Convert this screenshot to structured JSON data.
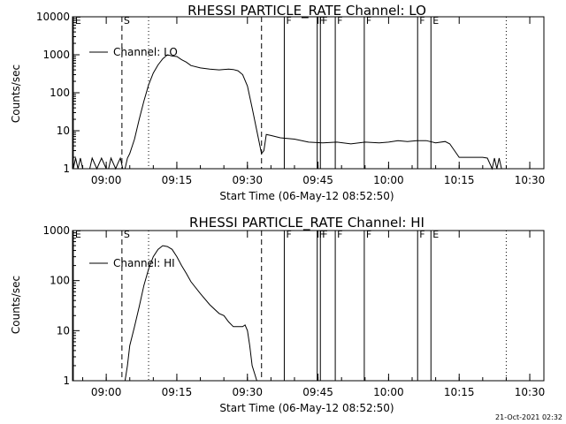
{
  "chart_data": [
    {
      "type": "line",
      "title": "RHESSI PARTICLE_RATE Channel: LO",
      "xlabel": "Start Time (06-May-12 08:52:50)",
      "ylabel": "Counts/sec",
      "yscale": "log",
      "ylim": [
        1,
        10000
      ],
      "xlim": [
        "08:52:50",
        "10:33:00"
      ],
      "x_ticks": [
        "09:00",
        "09:15",
        "09:30",
        "09:45",
        "10:00",
        "10:15",
        "10:30"
      ],
      "y_ticks": [
        "1",
        "10",
        "100",
        "1000",
        "10000"
      ],
      "legend": {
        "location": "top-left",
        "entries": [
          "Channel: LO"
        ]
      },
      "grid": false,
      "series": [
        {
          "name": "Channel: LO",
          "x": [
            "08:53:00",
            "08:53:30",
            "08:54:00",
            "08:54:30",
            "08:55:00",
            "08:55:30",
            "08:56:00",
            "08:56:30",
            "08:57:00",
            "08:58:00",
            "08:59:00",
            "09:00:00",
            "09:00:30",
            "09:01:00",
            "09:02:00",
            "09:02:30",
            "09:03:00",
            "09:03:30",
            "09:04:00",
            "09:04:30",
            "09:05:00",
            "09:06:00",
            "09:07:00",
            "09:08:00",
            "09:09:00",
            "09:10:00",
            "09:11:00",
            "09:12:00",
            "09:13:00",
            "09:14:00",
            "09:15:00",
            "09:16:00",
            "09:17:00",
            "09:18:00",
            "09:20:00",
            "09:22:00",
            "09:24:00",
            "09:26:00",
            "09:27:00",
            "09:28:00",
            "09:29:00",
            "09:30:00",
            "09:31:00",
            "09:32:00",
            "09:33:00",
            "09:33:30",
            "09:34:00",
            "09:35:00",
            "09:37:00",
            "09:40:00",
            "09:43:00",
            "09:46:00",
            "09:49:00",
            "09:52:00",
            "09:55:00",
            "09:58:00",
            "10:00:00",
            "10:02:00",
            "10:04:00",
            "10:06:00",
            "10:08:00",
            "10:10:00",
            "10:12:00",
            "10:13:00",
            "10:14:00",
            "10:15:00",
            "10:17:00",
            "10:19:00",
            "10:20:00",
            "10:21:00",
            "10:22:00",
            "10:22:30",
            "10:23:00",
            "10:23:30",
            "10:24:00"
          ],
          "values": [
            1,
            1.9,
            1,
            1.9,
            1,
            1,
            1,
            1,
            1.9,
            1,
            1.9,
            1,
            1,
            1.9,
            1,
            1.4,
            1.9,
            1,
            1,
            1.9,
            2.5,
            6,
            20,
            60,
            160,
            330,
            540,
            780,
            1000,
            930,
            900,
            740,
            640,
            520,
            450,
            420,
            400,
            420,
            410,
            380,
            300,
            150,
            40,
            10,
            2.5,
            3,
            8,
            7.5,
            6.5,
            6,
            5,
            4.8,
            5,
            4.5,
            5,
            4.8,
            5,
            5.5,
            5.2,
            5.5,
            5.5,
            4.8,
            5.2,
            4.5,
            3,
            2,
            2,
            2,
            2,
            1.9,
            1,
            1.9,
            1,
            1.9,
            1
          ]
        }
      ]
    },
    {
      "type": "line",
      "title": "RHESSI PARTICLE_RATE Channel: HI",
      "xlabel": "Start Time (06-May-12 08:52:50)",
      "ylabel": "Counts/sec",
      "yscale": "log",
      "ylim": [
        1,
        1000
      ],
      "xlim": [
        "08:52:50",
        "10:33:00"
      ],
      "x_ticks": [
        "09:00",
        "09:15",
        "09:30",
        "09:45",
        "10:00",
        "10:15",
        "10:30"
      ],
      "y_ticks": [
        "1",
        "10",
        "100",
        "1000"
      ],
      "legend": {
        "location": "top-left",
        "entries": [
          "Channel: HI"
        ]
      },
      "grid": false,
      "series": [
        {
          "name": "Channel: HI",
          "x": [
            "09:04:00",
            "09:04:30",
            "09:05:00",
            "09:06:00",
            "09:07:00",
            "09:08:00",
            "09:09:00",
            "09:10:00",
            "09:11:00",
            "09:12:00",
            "09:13:00",
            "09:14:00",
            "09:15:00",
            "09:16:00",
            "09:17:00",
            "09:18:00",
            "09:20:00",
            "09:22:00",
            "09:24:00",
            "09:25:00",
            "09:26:00",
            "09:27:00",
            "09:28:00",
            "09:29:00",
            "09:29:30",
            "09:30:00",
            "09:30:30",
            "09:31:00",
            "09:32:00"
          ],
          "values": [
            1,
            2,
            5,
            12,
            30,
            80,
            170,
            300,
            420,
            500,
            480,
            420,
            300,
            200,
            140,
            95,
            55,
            33,
            22,
            20,
            15,
            12,
            12,
            12,
            13,
            10,
            5,
            2,
            1
          ]
        }
      ]
    }
  ],
  "event_markers": {
    "times": [
      "08:53:00",
      "09:03:20",
      "10:09:00",
      "09:37:50",
      "09:44:50",
      "09:45:30",
      "09:48:40",
      "09:54:50",
      "10:06:10",
      "09:33:00",
      "09:09:00",
      "10:25:00"
    ],
    "labels": [
      "E",
      "S",
      "E",
      "F",
      "F",
      "F",
      "F",
      "F",
      "F",
      "",
      "",
      ""
    ],
    "styles": [
      "solid",
      "dashed",
      "solid",
      "solid",
      "solid",
      "solid",
      "solid",
      "solid",
      "solid",
      "dashed",
      "dotted",
      "dotted"
    ]
  },
  "footer": {
    "stamp": "21-Oct-2021 02:32"
  }
}
